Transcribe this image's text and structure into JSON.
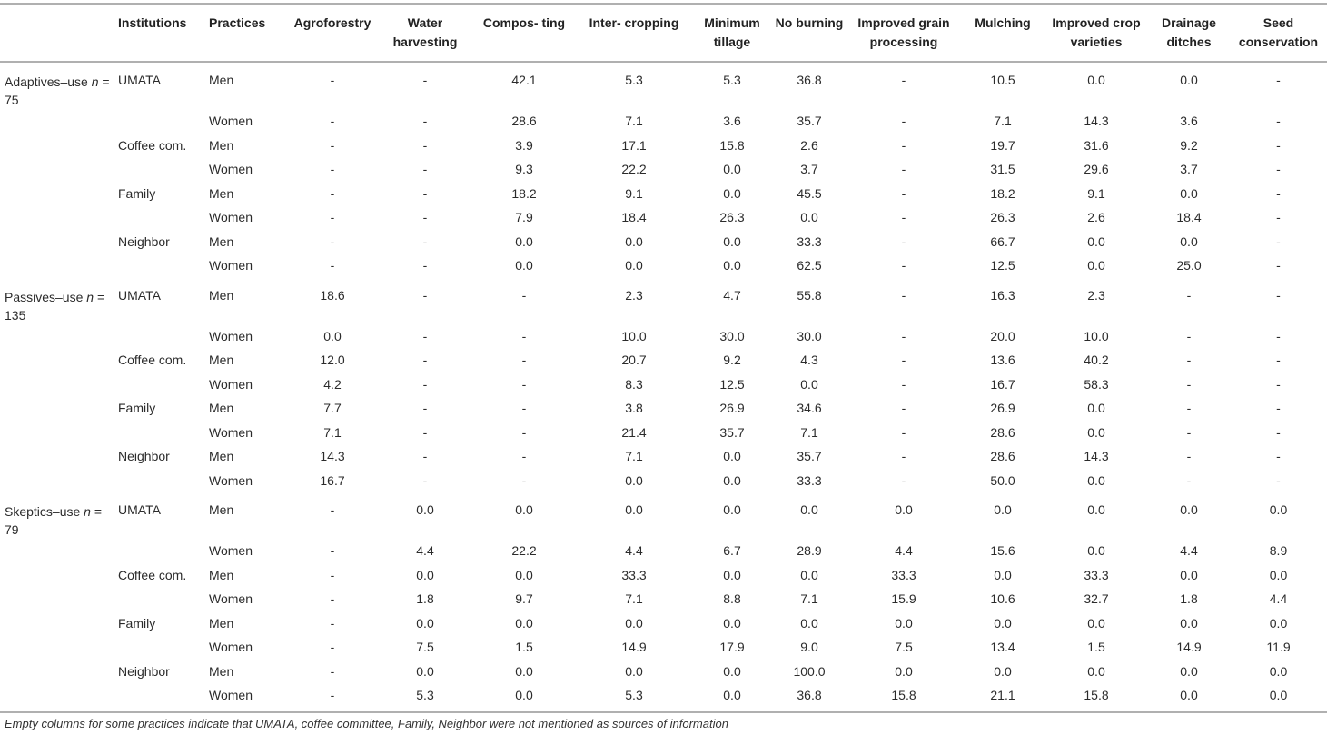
{
  "table": {
    "headers": [
      "",
      "Institutions",
      "Practices",
      "Agroforestry",
      "Water harvesting",
      "Compos- ting",
      "Inter- cropping",
      "Minimum tillage",
      "No burning",
      "Improved grain processing",
      "Mulching",
      "Improved crop varieties",
      "Drainage ditches",
      "Seed conservation"
    ],
    "groups": [
      {
        "label": "Adaptives–use",
        "n_symbol": "n",
        "n_value": "= 75",
        "institutions": [
          {
            "name": "UMATA",
            "rows": [
              {
                "practice": "Men",
                "values": [
                  "-",
                  "-",
                  "42.1",
                  "5.3",
                  "5.3",
                  "36.8",
                  "-",
                  "10.5",
                  "0.0",
                  "0.0",
                  "-"
                ]
              },
              {
                "practice": "Women",
                "values": [
                  "-",
                  "-",
                  "28.6",
                  "7.1",
                  "3.6",
                  "35.7",
                  "-",
                  "7.1",
                  "14.3",
                  "3.6",
                  "-"
                ]
              }
            ]
          },
          {
            "name": "Coffee com.",
            "rows": [
              {
                "practice": "Men",
                "values": [
                  "-",
                  "-",
                  "3.9",
                  "17.1",
                  "15.8",
                  "2.6",
                  "-",
                  "19.7",
                  "31.6",
                  "9.2",
                  "-"
                ]
              },
              {
                "practice": "Women",
                "values": [
                  "-",
                  "-",
                  "9.3",
                  "22.2",
                  "0.0",
                  "3.7",
                  "-",
                  "31.5",
                  "29.6",
                  "3.7",
                  "-"
                ]
              }
            ]
          },
          {
            "name": "Family",
            "rows": [
              {
                "practice": "Men",
                "values": [
                  "-",
                  "-",
                  "18.2",
                  "9.1",
                  "0.0",
                  "45.5",
                  "-",
                  "18.2",
                  "9.1",
                  "0.0",
                  "-"
                ]
              },
              {
                "practice": "Women",
                "values": [
                  "-",
                  "-",
                  "7.9",
                  "18.4",
                  "26.3",
                  "0.0",
                  "-",
                  "26.3",
                  "2.6",
                  "18.4",
                  "-"
                ]
              }
            ]
          },
          {
            "name": "Neighbor",
            "rows": [
              {
                "practice": "Men",
                "values": [
                  "-",
                  "-",
                  "0.0",
                  "0.0",
                  "0.0",
                  "33.3",
                  "-",
                  "66.7",
                  "0.0",
                  "0.0",
                  "-"
                ]
              },
              {
                "practice": "Women",
                "values": [
                  "-",
                  "-",
                  "0.0",
                  "0.0",
                  "0.0",
                  "62.5",
                  "-",
                  "12.5",
                  "0.0",
                  "25.0",
                  "-"
                ]
              }
            ]
          }
        ]
      },
      {
        "label": "Passives–use",
        "n_symbol": "n",
        "n_value": "= 135",
        "institutions": [
          {
            "name": "UMATA",
            "rows": [
              {
                "practice": "Men",
                "values": [
                  "18.6",
                  "-",
                  "-",
                  "2.3",
                  "4.7",
                  "55.8",
                  "-",
                  "16.3",
                  "2.3",
                  "-",
                  "-"
                ]
              },
              {
                "practice": "Women",
                "values": [
                  "0.0",
                  "-",
                  "-",
                  "10.0",
                  "30.0",
                  "30.0",
                  "-",
                  "20.0",
                  "10.0",
                  "-",
                  "-"
                ]
              }
            ]
          },
          {
            "name": "Coffee com.",
            "rows": [
              {
                "practice": "Men",
                "values": [
                  "12.0",
                  "-",
                  "-",
                  "20.7",
                  "9.2",
                  "4.3",
                  "-",
                  "13.6",
                  "40.2",
                  "-",
                  "-"
                ]
              },
              {
                "practice": "Women",
                "values": [
                  "4.2",
                  "-",
                  "-",
                  "8.3",
                  "12.5",
                  "0.0",
                  "-",
                  "16.7",
                  "58.3",
                  "-",
                  "-"
                ]
              }
            ]
          },
          {
            "name": "Family",
            "rows": [
              {
                "practice": "Men",
                "values": [
                  "7.7",
                  "-",
                  "-",
                  "3.8",
                  "26.9",
                  "34.6",
                  "-",
                  "26.9",
                  "0.0",
                  "-",
                  "-"
                ]
              },
              {
                "practice": "Women",
                "values": [
                  "7.1",
                  "-",
                  "-",
                  "21.4",
                  "35.7",
                  "7.1",
                  "-",
                  "28.6",
                  "0.0",
                  "-",
                  "-"
                ]
              }
            ]
          },
          {
            "name": "Neighbor",
            "rows": [
              {
                "practice": "Men",
                "values": [
                  "14.3",
                  "-",
                  "-",
                  "7.1",
                  "0.0",
                  "35.7",
                  "-",
                  "28.6",
                  "14.3",
                  "-",
                  "-"
                ]
              },
              {
                "practice": "Women",
                "values": [
                  "16.7",
                  "-",
                  "-",
                  "0.0",
                  "0.0",
                  "33.3",
                  "-",
                  "50.0",
                  "0.0",
                  "-",
                  "-"
                ]
              }
            ]
          }
        ]
      },
      {
        "label": "Skeptics–use",
        "n_symbol": "n",
        "n_value": "= 79",
        "institutions": [
          {
            "name": "UMATA",
            "rows": [
              {
                "practice": "Men",
                "values": [
                  "-",
                  "0.0",
                  "0.0",
                  "0.0",
                  "0.0",
                  "0.0",
                  "0.0",
                  "0.0",
                  "0.0",
                  "0.0",
                  "0.0"
                ]
              },
              {
                "practice": "Women",
                "values": [
                  "-",
                  "4.4",
                  "22.2",
                  "4.4",
                  "6.7",
                  "28.9",
                  "4.4",
                  "15.6",
                  "0.0",
                  "4.4",
                  "8.9"
                ]
              }
            ]
          },
          {
            "name": "Coffee com.",
            "rows": [
              {
                "practice": "Men",
                "values": [
                  "-",
                  "0.0",
                  "0.0",
                  "33.3",
                  "0.0",
                  "0.0",
                  "33.3",
                  "0.0",
                  "33.3",
                  "0.0",
                  "0.0"
                ]
              },
              {
                "practice": "Women",
                "values": [
                  "-",
                  "1.8",
                  "9.7",
                  "7.1",
                  "8.8",
                  "7.1",
                  "15.9",
                  "10.6",
                  "32.7",
                  "1.8",
                  "4.4"
                ]
              }
            ]
          },
          {
            "name": "Family",
            "rows": [
              {
                "practice": "Men",
                "values": [
                  "-",
                  "0.0",
                  "0.0",
                  "0.0",
                  "0.0",
                  "0.0",
                  "0.0",
                  "0.0",
                  "0.0",
                  "0.0",
                  "0.0"
                ]
              },
              {
                "practice": "Women",
                "values": [
                  "-",
                  "7.5",
                  "1.5",
                  "14.9",
                  "17.9",
                  "9.0",
                  "7.5",
                  "13.4",
                  "1.5",
                  "14.9",
                  "11.9"
                ]
              }
            ]
          },
          {
            "name": "Neighbor",
            "rows": [
              {
                "practice": "Men",
                "values": [
                  "-",
                  "0.0",
                  "0.0",
                  "0.0",
                  "0.0",
                  "100.0",
                  "0.0",
                  "0.0",
                  "0.0",
                  "0.0",
                  "0.0"
                ]
              },
              {
                "practice": "Women",
                "values": [
                  "-",
                  "5.3",
                  "0.0",
                  "5.3",
                  "0.0",
                  "36.8",
                  "15.8",
                  "21.1",
                  "15.8",
                  "0.0",
                  "0.0"
                ]
              }
            ]
          }
        ]
      }
    ],
    "footnote": "Empty columns for some practices indicate that UMATA, coffee committee, Family, Neighbor were not mentioned as sources of information"
  }
}
